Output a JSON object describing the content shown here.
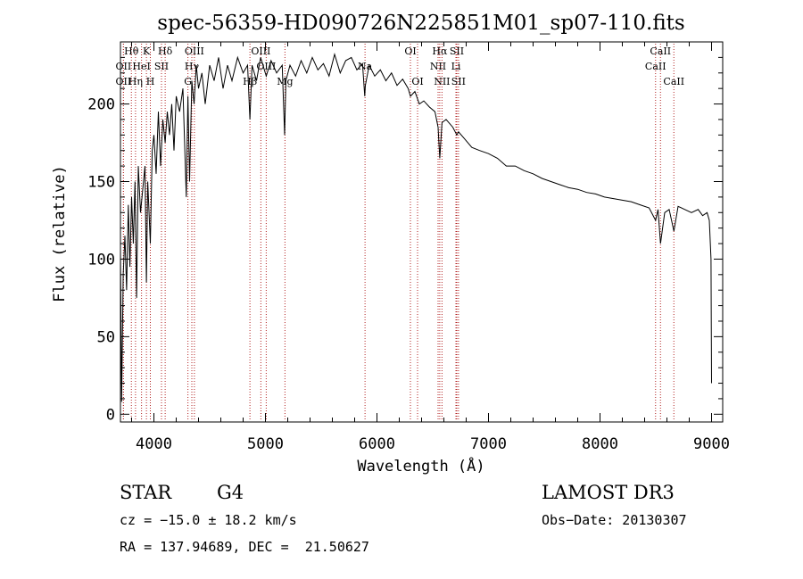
{
  "chart_data": {
    "type": "line",
    "title": "spec-56359-HD090726N225851M01_sp07-110.fits",
    "xlabel": "Wavelength (Å)",
    "ylabel": "Flux (relative)",
    "xlim": [
      3700,
      9100
    ],
    "ylim": [
      -5,
      240
    ],
    "x_ticks": [
      4000,
      5000,
      6000,
      7000,
      8000,
      9000
    ],
    "y_ticks": [
      0,
      50,
      100,
      150,
      200
    ],
    "grid": false,
    "series": [
      {
        "name": "spectrum",
        "x": [
          3700,
          3710,
          3725,
          3740,
          3755,
          3770,
          3785,
          3800,
          3815,
          3830,
          3845,
          3860,
          3880,
          3900,
          3920,
          3933,
          3945,
          3968,
          3985,
          4000,
          4020,
          4040,
          4060,
          4080,
          4101,
          4120,
          4140,
          4160,
          4180,
          4200,
          4230,
          4260,
          4290,
          4305,
          4320,
          4340,
          4360,
          4380,
          4400,
          4430,
          4460,
          4500,
          4540,
          4580,
          4620,
          4660,
          4700,
          4750,
          4800,
          4840,
          4861,
          4880,
          4920,
          4957,
          5007,
          5050,
          5100,
          5150,
          5172,
          5183,
          5220,
          5270,
          5320,
          5370,
          5420,
          5470,
          5520,
          5570,
          5620,
          5670,
          5720,
          5770,
          5820,
          5870,
          5890,
          5896,
          5930,
          5980,
          6030,
          6080,
          6130,
          6180,
          6230,
          6280,
          6300,
          6340,
          6380,
          6420,
          6470,
          6520,
          6548,
          6563,
          6583,
          6620,
          6680,
          6716,
          6731,
          6780,
          6850,
          6920,
          7000,
          7080,
          7160,
          7240,
          7320,
          7400,
          7480,
          7560,
          7640,
          7720,
          7800,
          7880,
          7960,
          8040,
          8120,
          8200,
          8280,
          8360,
          8440,
          8498,
          8520,
          8542,
          8580,
          8620,
          8662,
          8700,
          8760,
          8820,
          8880,
          8920,
          8960,
          8980,
          8995,
          9000
        ],
        "y": [
          105,
          8,
          90,
          115,
          80,
          135,
          95,
          140,
          110,
          150,
          75,
          160,
          130,
          145,
          160,
          85,
          150,
          110,
          170,
          180,
          155,
          195,
          160,
          190,
          175,
          195,
          180,
          200,
          170,
          205,
          195,
          210,
          140,
          205,
          150,
          215,
          200,
          225,
          210,
          220,
          200,
          225,
          215,
          230,
          210,
          225,
          215,
          230,
          220,
          225,
          190,
          225,
          215,
          230,
          218,
          228,
          220,
          225,
          180,
          215,
          225,
          218,
          228,
          220,
          230,
          222,
          226,
          218,
          232,
          220,
          228,
          230,
          222,
          226,
          205,
          212,
          225,
          218,
          222,
          215,
          220,
          212,
          216,
          210,
          205,
          208,
          200,
          202,
          198,
          195,
          185,
          165,
          188,
          190,
          185,
          180,
          182,
          178,
          172,
          170,
          168,
          165,
          160,
          160,
          157,
          155,
          152,
          150,
          148,
          146,
          145,
          143,
          142,
          140,
          139,
          138,
          137,
          135,
          133,
          125,
          132,
          110,
          130,
          132,
          118,
          134,
          132,
          130,
          132,
          128,
          130,
          125,
          100,
          20
        ]
      }
    ],
    "lines": [
      {
        "label": "Hθ",
        "x": 3798,
        "row": 1
      },
      {
        "label": "OII",
        "x": 3727,
        "row": 2
      },
      {
        "label": "OII",
        "x": 3727,
        "row": 3
      },
      {
        "label": "Hη",
        "x": 3835,
        "row": 3
      },
      {
        "label": "HeI",
        "x": 3889,
        "row": 2
      },
      {
        "label": "K",
        "x": 3933,
        "row": 1
      },
      {
        "label": "SII",
        "x": 4068,
        "row": 2
      },
      {
        "label": "H",
        "x": 3968,
        "row": 3
      },
      {
        "label": "Hδ",
        "x": 4101,
        "row": 1
      },
      {
        "label": "OIII",
        "x": 4363,
        "row": 1
      },
      {
        "label": "Hγ",
        "x": 4340,
        "row": 2
      },
      {
        "label": "G",
        "x": 4305,
        "row": 3
      },
      {
        "label": "OIII",
        "x": 4959,
        "row": 1
      },
      {
        "label": "OIII",
        "x": 5007,
        "row": 2
      },
      {
        "label": "Hβ",
        "x": 4861,
        "row": 3
      },
      {
        "label": "Mg",
        "x": 5175,
        "row": 3
      },
      {
        "label": "Na",
        "x": 5893,
        "row": 2
      },
      {
        "label": "OI",
        "x": 6300,
        "row": 1
      },
      {
        "label": "OI",
        "x": 6364,
        "row": 3
      },
      {
        "label": "Hα",
        "x": 6563,
        "row": 1
      },
      {
        "label": "NII",
        "x": 6548,
        "row": 2
      },
      {
        "label": "NII",
        "x": 6583,
        "row": 3
      },
      {
        "label": "SII",
        "x": 6716,
        "row": 1
      },
      {
        "label": "Li",
        "x": 6708,
        "row": 2
      },
      {
        "label": "SII",
        "x": 6731,
        "row": 3
      },
      {
        "label": "CaII",
        "x": 8542,
        "row": 1
      },
      {
        "label": "CaII",
        "x": 8498,
        "row": 2
      },
      {
        "label": "CaII",
        "x": 8662,
        "row": 3
      }
    ]
  },
  "info": {
    "class_label": "STAR",
    "subclass": "G4",
    "survey": "LAMOST DR3",
    "cz": "cz = −15.0 ± 18.2 km/s",
    "obs_date": "Obs−Date: 20130307",
    "coords": "RA = 137.94689, DEC =  21.50627"
  }
}
